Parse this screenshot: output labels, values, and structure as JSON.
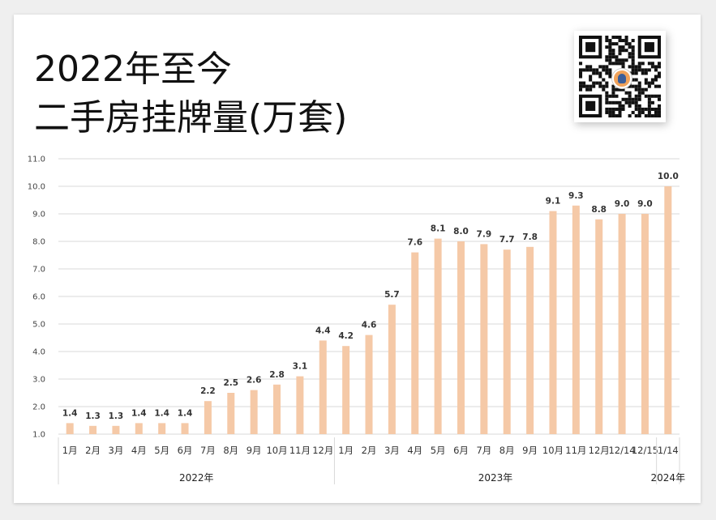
{
  "title": {
    "line1": "2022年至今",
    "line2": "二手房挂牌量(万套)"
  },
  "qr_icon": "qr-code-icon",
  "colors": {
    "bar": "#f5c9a7",
    "grid": "#d9d9d9",
    "text": "#333333"
  },
  "chart_data": {
    "type": "bar",
    "title": "2022年至今 二手房挂牌量(万套)",
    "categories": [
      "1月",
      "2月",
      "3月",
      "4月",
      "5月",
      "6月",
      "7月",
      "8月",
      "9月",
      "10月",
      "11月",
      "12月",
      "1月",
      "2月",
      "3月",
      "4月",
      "5月",
      "6月",
      "7月",
      "8月",
      "9月",
      "10月",
      "11月",
      "12月",
      "12/14",
      "12/15",
      "1/14"
    ],
    "groups": [
      {
        "label": "2022年",
        "count": 12
      },
      {
        "label": "2023年",
        "count": 14
      },
      {
        "label": "2024年",
        "count": 1
      }
    ],
    "values": [
      1.4,
      1.3,
      1.3,
      1.4,
      1.4,
      1.4,
      2.2,
      2.5,
      2.6,
      2.8,
      3.1,
      4.4,
      4.2,
      4.6,
      5.7,
      7.6,
      8.1,
      8.0,
      7.9,
      7.7,
      7.8,
      9.1,
      9.3,
      8.8,
      9.0,
      9.0,
      10.0
    ],
    "value_labels": [
      "1.4",
      "1.3",
      "1.3",
      "1.4",
      "1.4",
      "1.4",
      "2.2",
      "2.5",
      "2.6",
      "2.8",
      "3.1",
      "4.4",
      "4.2",
      "4.6",
      "5.7",
      "7.6",
      "8.1",
      "8.0",
      "7.9",
      "7.7",
      "7.8",
      "9.1",
      "9.3",
      "8.8",
      "9.0",
      "9.0",
      "10.0"
    ],
    "yticks": [
      "1.0",
      "2.0",
      "3.0",
      "4.0",
      "5.0",
      "6.0",
      "7.0",
      "8.0",
      "9.0",
      "10.0",
      "11.0"
    ],
    "ylim": [
      1,
      11
    ],
    "grid": true,
    "xlabel": "",
    "ylabel": ""
  }
}
